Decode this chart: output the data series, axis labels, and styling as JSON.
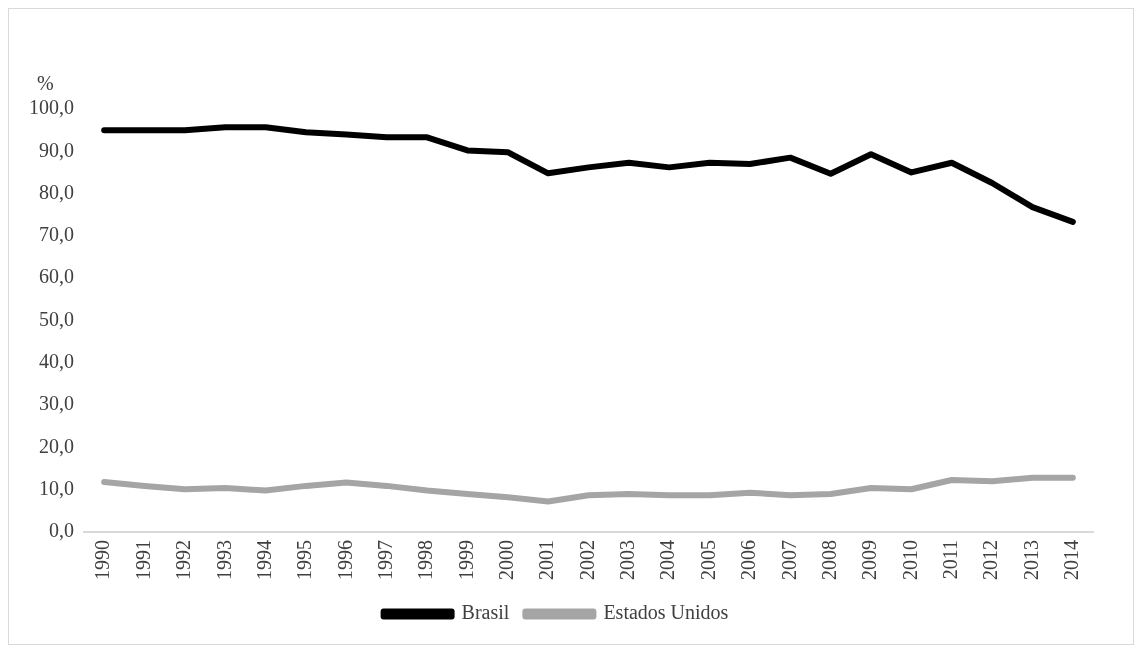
{
  "chart_data": {
    "type": "line",
    "ylabel": "%",
    "categories": [
      "1990",
      "1991",
      "1992",
      "1993",
      "1994",
      "1995",
      "1996",
      "1997",
      "1998",
      "1999",
      "2000",
      "2001",
      "2002",
      "2003",
      "2004",
      "2005",
      "2006",
      "2007",
      "2008",
      "2009",
      "2010",
      "2011",
      "2012",
      "2013",
      "2014"
    ],
    "series": [
      {
        "name": "Brasil",
        "color": "#000000",
        "values": [
          95,
          95,
          95,
          95.7,
          95.7,
          94.5,
          94,
          93.3,
          93.3,
          90.2,
          89.8,
          84.8,
          86.2,
          87.3,
          86.2,
          87.3,
          87,
          88.5,
          84.7,
          89.3,
          85,
          87.3,
          82.5,
          76.8,
          73.3
        ]
      },
      {
        "name": "Estados Unidos",
        "color": "#a5a5a5",
        "values": [
          11.8,
          10.9,
          10.1,
          10.4,
          9.8,
          10.9,
          11.7,
          10.9,
          9.8,
          9,
          8.2,
          7.2,
          8.7,
          9,
          8.7,
          8.7,
          9.3,
          8.7,
          9,
          10.4,
          10.1,
          12.3,
          12,
          12.8,
          12.8
        ]
      }
    ],
    "ylim": [
      0,
      100
    ],
    "yticks": [
      {
        "value": 0,
        "label": "0,0"
      },
      {
        "value": 10,
        "label": "10,0"
      },
      {
        "value": 20,
        "label": "20,0"
      },
      {
        "value": 30,
        "label": "30,0"
      },
      {
        "value": 40,
        "label": "40,0"
      },
      {
        "value": 50,
        "label": "50,0"
      },
      {
        "value": 60,
        "label": "60,0"
      },
      {
        "value": 70,
        "label": "70,0"
      },
      {
        "value": 80,
        "label": "80,0"
      },
      {
        "value": 90,
        "label": "90,0"
      },
      {
        "value": 100,
        "label": "100,0"
      }
    ],
    "grid": false,
    "legend": "bottom",
    "marker": "none",
    "line_style": "solid"
  }
}
